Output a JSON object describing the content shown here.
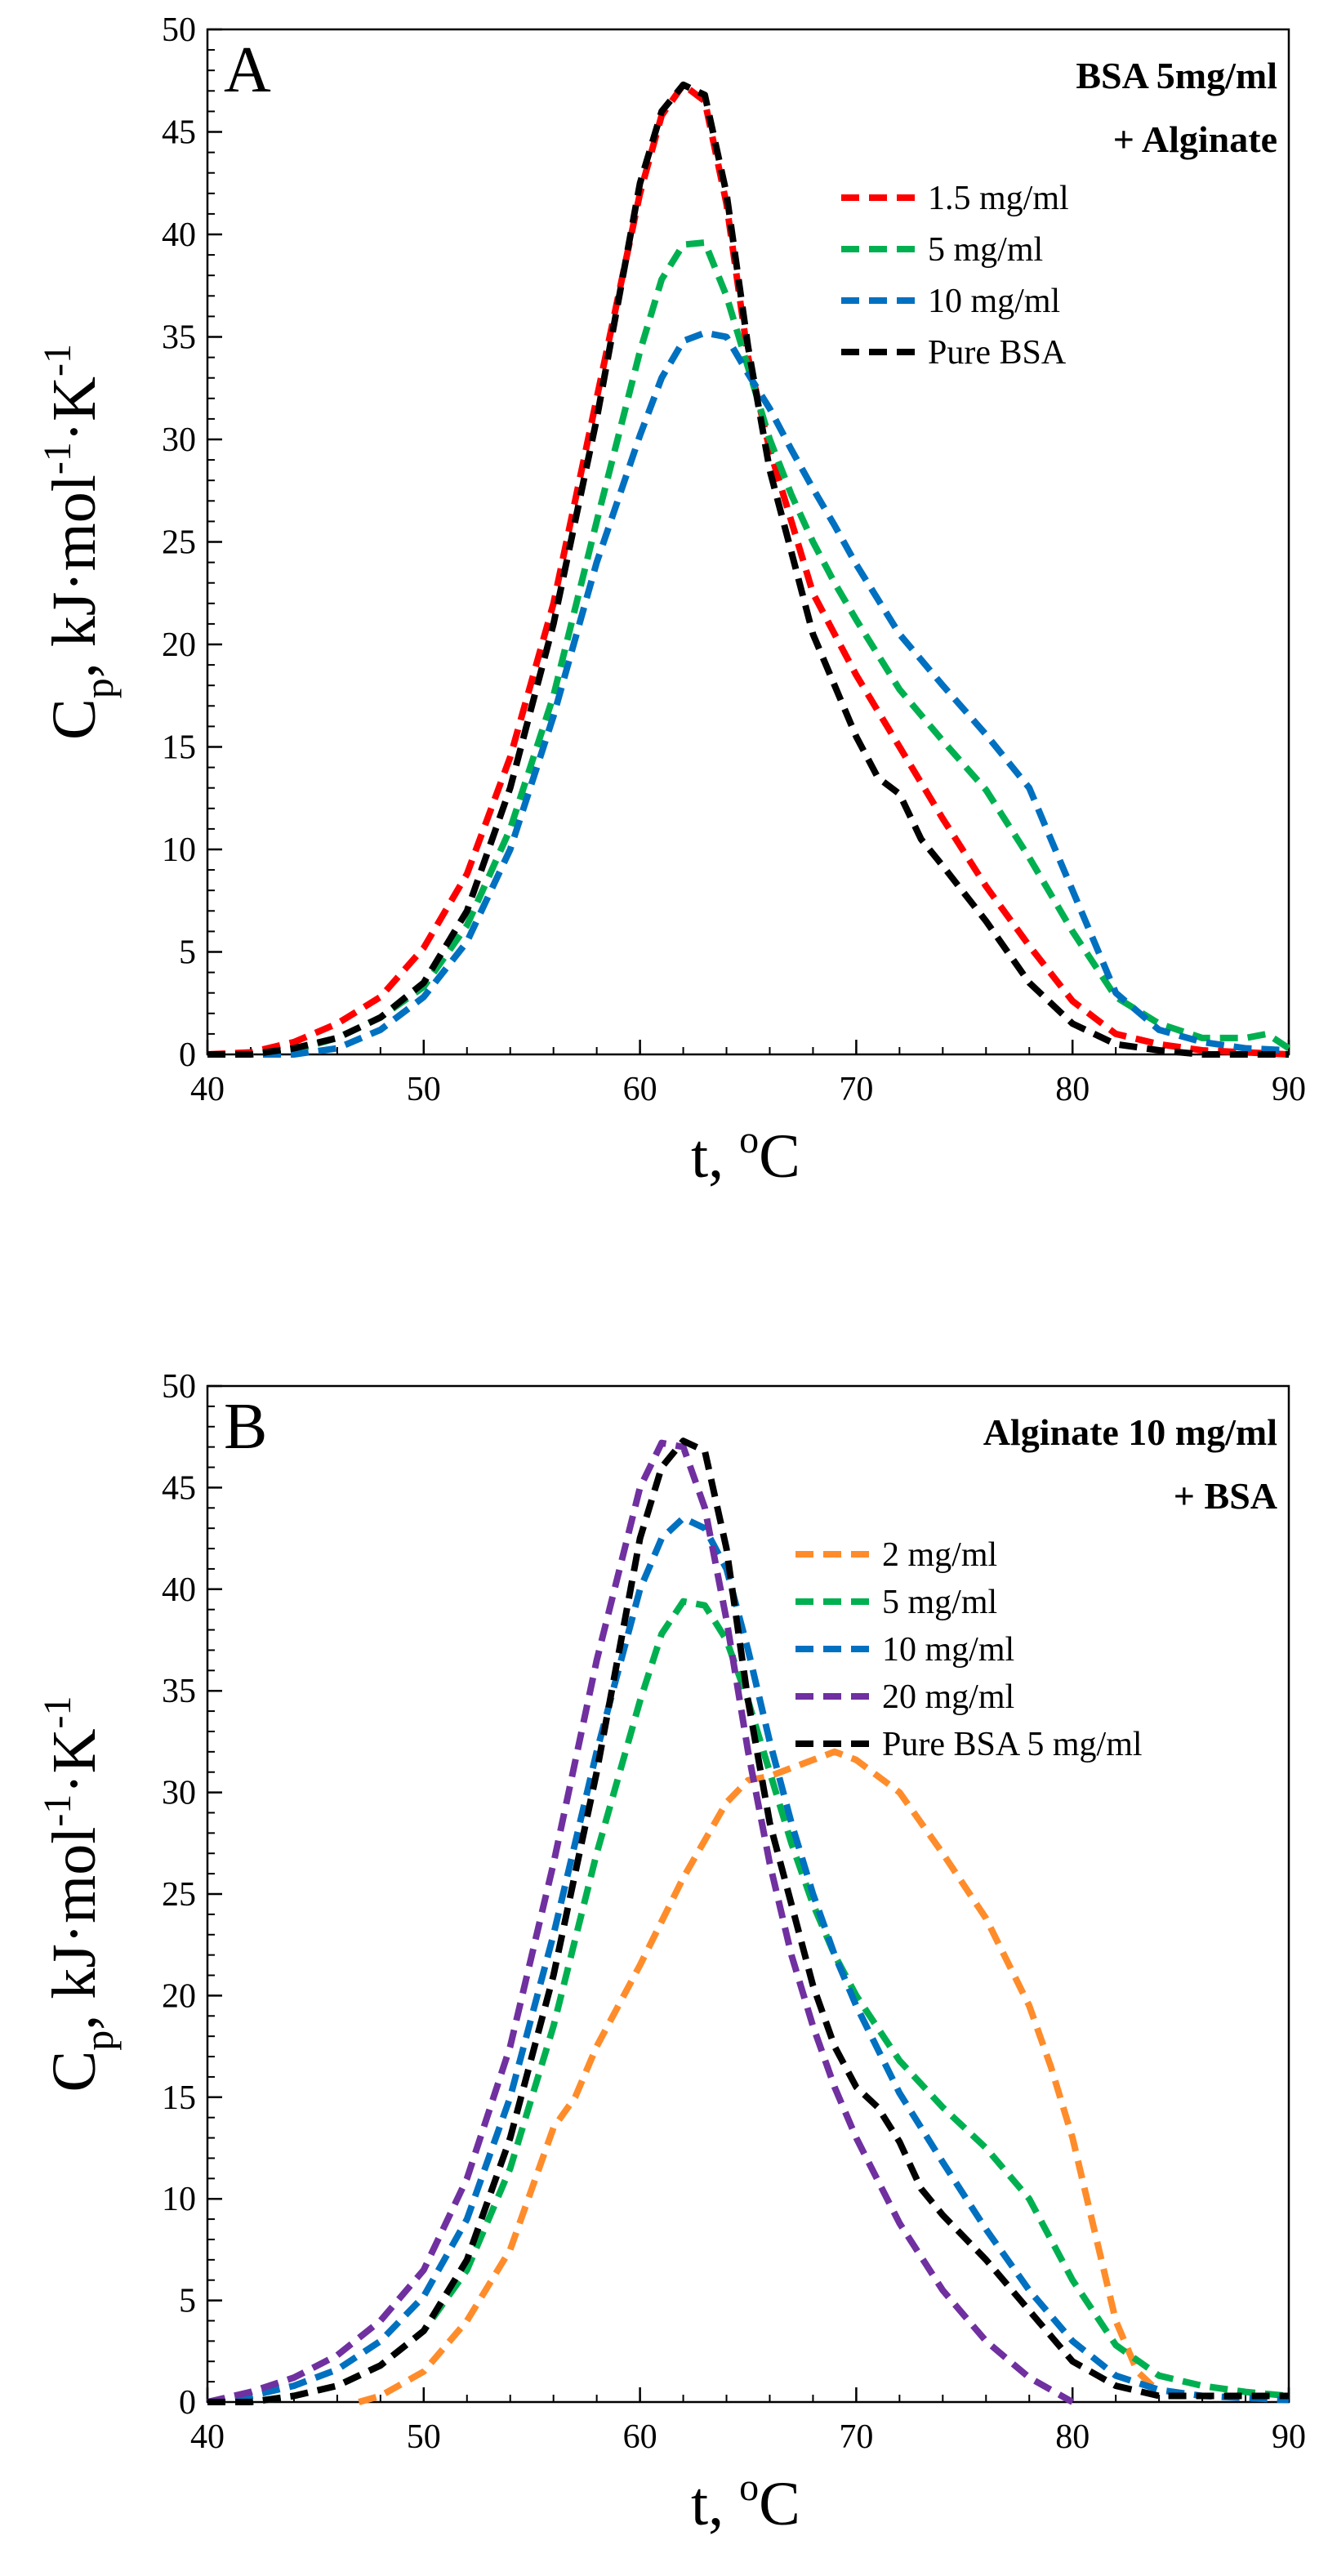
{
  "chart_data": [
    {
      "type": "line",
      "panel": "A",
      "xlabel": "t, °C",
      "ylabel": "Cp, kJ·mol-1·K-1",
      "xlim": [
        40,
        90
      ],
      "ylim": [
        0,
        50
      ],
      "x_ticks": [
        "40",
        "50",
        "60",
        "70",
        "80",
        "90"
      ],
      "y_ticks": [
        "0",
        "5",
        "10",
        "15",
        "20",
        "25",
        "30",
        "35",
        "40",
        "45",
        "50"
      ],
      "legend_title": [
        "BSA 5mg/ml",
        "+ Alginate"
      ],
      "legend_position": "top-right",
      "series": [
        {
          "name": "1.5 mg/ml",
          "color": "#ff0000",
          "x": [
            40,
            42,
            44,
            46,
            48,
            50,
            52,
            54,
            56,
            58,
            60,
            61,
            62,
            63,
            64,
            65,
            66,
            67,
            68,
            69,
            70,
            72,
            74,
            76,
            78,
            80,
            82,
            84,
            86,
            88,
            90
          ],
          "y": [
            0,
            0.1,
            0.6,
            1.5,
            2.8,
            5.2,
            8.8,
            14.5,
            22,
            32,
            42,
            45.8,
            47.3,
            46.5,
            41.5,
            34,
            29.5,
            26,
            22.5,
            20.5,
            18.5,
            15,
            11.5,
            8.2,
            5.3,
            2.6,
            1,
            0.5,
            0.2,
            0.1,
            0
          ]
        },
        {
          "name": "5 mg/ml",
          "color": "#00b050",
          "x": [
            40,
            42,
            44,
            46,
            48,
            50,
            52,
            54,
            56,
            58,
            60,
            61,
            62,
            63,
            64,
            65,
            66,
            67,
            68,
            69,
            70,
            72,
            74,
            76,
            78,
            80,
            82,
            84,
            86,
            88,
            89,
            90
          ],
          "y": [
            0,
            0,
            0.2,
            0.8,
            1.8,
            3.3,
            6.3,
            11,
            17.5,
            26,
            34.3,
            37.8,
            39.5,
            39.6,
            37,
            33.5,
            30,
            27.3,
            25,
            23,
            21.2,
            17.8,
            15.3,
            12.9,
            9.6,
            6,
            2.8,
            1.5,
            0.8,
            0.8,
            1,
            0.3
          ]
        },
        {
          "name": "10 mg/ml",
          "color": "#0070c0",
          "x": [
            40,
            42,
            44,
            46,
            48,
            50,
            52,
            54,
            56,
            58,
            60,
            61,
            62,
            63,
            64,
            65,
            66,
            67,
            68,
            69,
            70,
            72,
            74,
            76,
            78,
            80,
            82,
            84,
            86,
            88,
            90
          ],
          "y": [
            0,
            0,
            0,
            0.3,
            1.2,
            2.8,
            5.5,
            10,
            16.5,
            24,
            30.2,
            33,
            34.8,
            35.2,
            35,
            33.2,
            31.5,
            29.5,
            27.6,
            25.8,
            23.9,
            20.5,
            18,
            15.6,
            13,
            8,
            3,
            1.2,
            0.6,
            0.3,
            0.2
          ]
        },
        {
          "name": "Pure BSA",
          "color": "#000000",
          "x": [
            40,
            42,
            44,
            46,
            48,
            50,
            52,
            54,
            56,
            58,
            60,
            61,
            62,
            63,
            64,
            65,
            66,
            67,
            68,
            69,
            70,
            71,
            72,
            73,
            74,
            76,
            78,
            80,
            82,
            84,
            86,
            88,
            90
          ],
          "y": [
            0,
            0,
            0.3,
            0.8,
            1.8,
            3.5,
            7,
            13,
            21,
            31,
            42.5,
            46,
            47.3,
            46.8,
            42,
            34.5,
            28.5,
            24.5,
            20.5,
            18,
            15.5,
            13.5,
            12.7,
            10.5,
            9.2,
            6.5,
            3.5,
            1.5,
            0.5,
            0.2,
            0,
            0,
            0
          ]
        }
      ]
    },
    {
      "type": "line",
      "panel": "B",
      "xlabel": "t, °C",
      "ylabel": "Cp, kJ·mol-1·K-1",
      "xlim": [
        40,
        90
      ],
      "ylim": [
        0,
        50
      ],
      "x_ticks": [
        "40",
        "50",
        "60",
        "70",
        "80",
        "90"
      ],
      "y_ticks": [
        "0",
        "5",
        "10",
        "15",
        "20",
        "25",
        "30",
        "35",
        "40",
        "45",
        "50"
      ],
      "legend_title": [
        "Alginate 10 mg/ml",
        " + BSA"
      ],
      "legend_position": "top-right",
      "series": [
        {
          "name": "2 mg/ml",
          "color": "#ff8c2a",
          "x": [
            47,
            48,
            50,
            52,
            54,
            55,
            56,
            57,
            58,
            60,
            62,
            64,
            65,
            66,
            67,
            68,
            69,
            70,
            71,
            72,
            74,
            76,
            78,
            79,
            80,
            81,
            82,
            83,
            84
          ],
          "y": [
            0,
            0.3,
            1.5,
            4,
            7.5,
            10.5,
            13.5,
            15,
            17.5,
            21.5,
            25.8,
            29.5,
            30.6,
            30.8,
            31.2,
            31.6,
            32,
            31.6,
            30.8,
            30,
            27,
            23.8,
            19.5,
            16.5,
            13,
            8.5,
            4,
            1.5,
            0.5
          ]
        },
        {
          "name": "5 mg/ml",
          "color": "#00b050",
          "x": [
            40,
            42,
            44,
            46,
            48,
            50,
            52,
            54,
            56,
            58,
            60,
            61,
            62,
            63,
            64,
            65,
            66,
            67,
            68,
            69,
            70,
            72,
            74,
            76,
            78,
            80,
            82,
            84,
            86,
            88,
            90
          ],
          "y": [
            0,
            0,
            0.3,
            0.8,
            1.8,
            3.5,
            6.5,
            11.5,
            18.5,
            27,
            34.5,
            37.8,
            39.4,
            39.2,
            37.5,
            34.5,
            31,
            27.5,
            24.5,
            22,
            20,
            16.8,
            14.5,
            12.5,
            10,
            6,
            2.8,
            1.3,
            0.8,
            0.5,
            0.3
          ]
        },
        {
          "name": "10 mg/ml",
          "color": "#0070c0",
          "x": [
            40,
            42,
            44,
            46,
            48,
            50,
            52,
            54,
            56,
            58,
            60,
            61,
            62,
            63,
            64,
            65,
            66,
            67,
            68,
            69,
            70,
            72,
            74,
            76,
            78,
            80,
            82,
            84,
            86,
            88,
            90
          ],
          "y": [
            0,
            0.3,
            0.8,
            1.6,
            3,
            5.2,
            9,
            15,
            23,
            32,
            40,
            42.5,
            43.5,
            43,
            41,
            37,
            32.5,
            28.5,
            25,
            22,
            19.5,
            15.2,
            11.8,
            8.5,
            5.5,
            3,
            1.3,
            0.6,
            0.3,
            0.2,
            0.1
          ]
        },
        {
          "name": "20 mg/ml",
          "color": "#7030a0",
          "x": [
            40,
            42,
            44,
            46,
            48,
            50,
            52,
            54,
            56,
            58,
            60,
            61,
            62,
            63,
            64,
            65,
            66,
            67,
            68,
            69,
            70,
            72,
            74,
            76,
            78,
            80
          ],
          "y": [
            0,
            0.5,
            1.2,
            2.3,
            4,
            6.5,
            11,
            17.5,
            26.5,
            36.5,
            45,
            47.2,
            47,
            44,
            38.5,
            32,
            26.5,
            22,
            18.5,
            15.5,
            13,
            8.8,
            5.5,
            3,
            1.2,
            0
          ]
        },
        {
          "name": "Pure BSA 5 mg/ml",
          "color": "#000000",
          "x": [
            40,
            42,
            44,
            46,
            48,
            50,
            52,
            54,
            56,
            58,
            60,
            61,
            62,
            63,
            64,
            65,
            66,
            67,
            68,
            69,
            70,
            71,
            72,
            73,
            74,
            76,
            78,
            80,
            82,
            84,
            86,
            88,
            90
          ],
          "y": [
            0,
            0,
            0.3,
            0.8,
            1.8,
            3.5,
            7,
            13,
            21,
            31,
            42.5,
            46,
            47.3,
            46.8,
            42,
            34.5,
            28.5,
            24.5,
            20.5,
            17.5,
            15.5,
            14.5,
            12.8,
            10.5,
            9.2,
            7,
            4.5,
            2,
            0.8,
            0.3,
            0.3,
            0.3,
            0.3
          ]
        }
      ]
    }
  ]
}
